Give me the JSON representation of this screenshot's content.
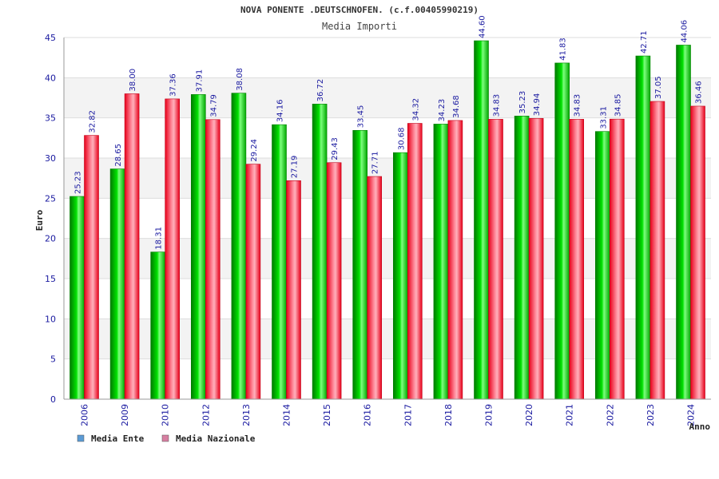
{
  "chart_data": {
    "type": "bar",
    "title": "NOVA PONENTE .DEUTSCHNOFEN. (c.f.00405990219)",
    "subtitle": "Media Importi",
    "ylabel": "Euro",
    "xlabel": "Anno",
    "ylim": [
      0,
      45
    ],
    "yticks": [
      "0",
      "5",
      "10",
      "15",
      "20",
      "25",
      "30",
      "35",
      "40",
      "45"
    ],
    "categories": [
      "2006",
      "2009",
      "2010",
      "2012",
      "2013",
      "2014",
      "2015",
      "2016",
      "2017",
      "2018",
      "2019",
      "2020",
      "2021",
      "2022",
      "2023",
      "2024"
    ],
    "series": [
      {
        "name": "Media Ente",
        "values": [
          25.23,
          28.65,
          18.31,
          37.91,
          38.08,
          34.16,
          36.72,
          33.45,
          30.68,
          34.23,
          44.6,
          35.23,
          41.83,
          33.31,
          42.71,
          44.06
        ],
        "labels": [
          "25.23",
          "28.65",
          "18.31",
          "37.91",
          "38.08",
          "34.16",
          "36.72",
          "33.45",
          "30.68",
          "34.23",
          "44.60",
          "35.23",
          "41.83",
          "33.31",
          "42.71",
          "44.06"
        ],
        "color": "#00cc00",
        "legend_color": "#5b9bd5"
      },
      {
        "name": "Media Nazionale",
        "values": [
          32.82,
          38.0,
          37.36,
          34.79,
          29.24,
          27.19,
          29.43,
          27.71,
          34.32,
          34.68,
          34.83,
          34.94,
          34.83,
          34.85,
          37.05,
          36.46
        ],
        "labels": [
          "32.82",
          "38.00",
          "37.36",
          "34.79",
          "29.24",
          "27.19",
          "29.43",
          "27.71",
          "34.32",
          "34.68",
          "34.83",
          "34.94",
          "34.83",
          "34.85",
          "37.05",
          "36.46"
        ],
        "color": "#ee1122",
        "legend_color": "#d77fa1"
      }
    ],
    "grid": true,
    "legend_position": "bottom-left"
  }
}
